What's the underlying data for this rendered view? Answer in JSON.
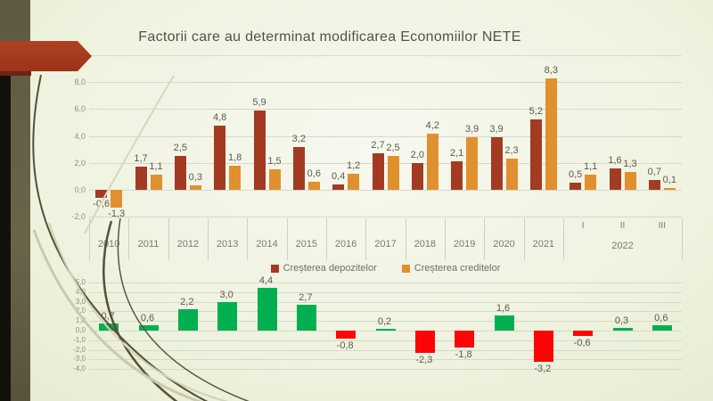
{
  "slide": {
    "title": "Factorii care au determinat modificarea Economiilor NETE"
  },
  "chart_data": [
    {
      "type": "bar",
      "title": "Factorii care au determinat modificarea Economiilor NETE",
      "categories": [
        "2010",
        "2011",
        "2012",
        "2013",
        "2014",
        "2015",
        "2016",
        "2017",
        "2018",
        "2019",
        "2020",
        "2021",
        "I",
        "II",
        "III"
      ],
      "group_label": "2022",
      "series": [
        {
          "name": "Creșterea depozitelor",
          "color": "#a33b22",
          "values": [
            -0.6,
            1.7,
            2.5,
            4.8,
            5.9,
            3.2,
            0.4,
            2.7,
            2.0,
            2.1,
            3.9,
            5.2,
            0.5,
            1.6,
            0.7
          ]
        },
        {
          "name": "Creșterea creditelor",
          "color": "#e0902e",
          "values": [
            -1.3,
            1.1,
            0.3,
            1.8,
            1.5,
            0.6,
            1.2,
            2.5,
            4.2,
            3.9,
            2.3,
            8.3,
            1.1,
            1.3,
            0.1
          ]
        }
      ],
      "ylim": [
        -2,
        10
      ],
      "yticks": [
        10,
        8,
        6,
        4,
        2,
        0,
        -2
      ],
      "grid": true,
      "legend_position": "bottom",
      "decimal_separator": ","
    },
    {
      "type": "bar",
      "categories": [
        "2010",
        "2011",
        "2012",
        "2013",
        "2014",
        "2015",
        "2016",
        "2017",
        "2018",
        "2019",
        "2020",
        "2021",
        "I",
        "II",
        "III"
      ],
      "values": [
        0.7,
        0.6,
        2.2,
        3.0,
        4.4,
        2.7,
        -0.8,
        0.2,
        -2.3,
        -1.8,
        1.6,
        -3.2,
        -0.6,
        0.3,
        0.6
      ],
      "positive_color": "#00b050",
      "negative_color": "#fb0606",
      "ylim": [
        -4,
        5
      ],
      "yticks": [
        5,
        4,
        3,
        2,
        1,
        0,
        -1,
        -2,
        -3,
        -4
      ],
      "grid": true,
      "legend_position": "none",
      "decimal_separator": ","
    }
  ],
  "decor": {
    "band_color": "#645e46",
    "dark_strip_color": "#12120c",
    "arrow_color": "#a83b1f",
    "positive_color": "#00b050",
    "negative_color": "#fb0606"
  }
}
